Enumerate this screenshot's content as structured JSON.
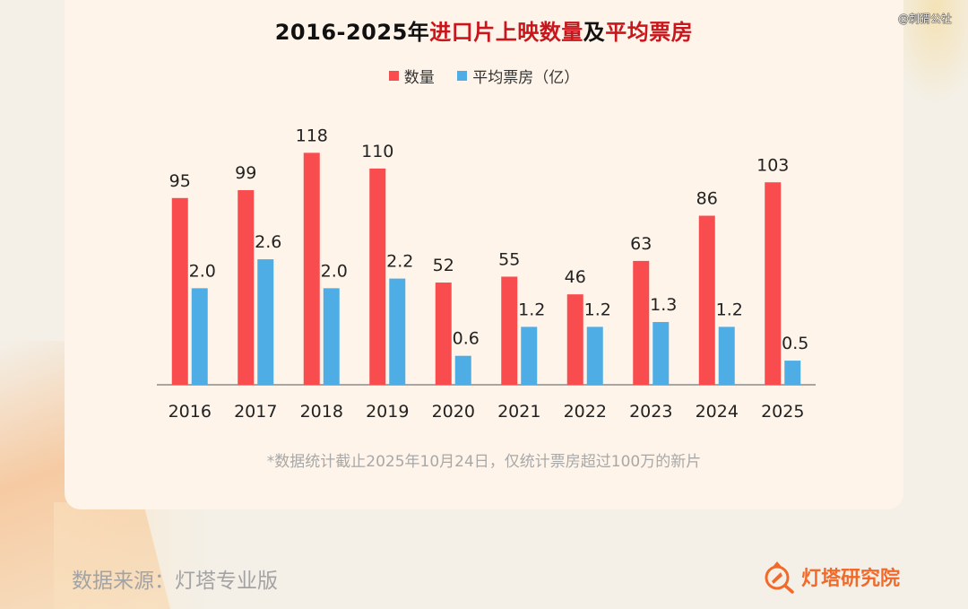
{
  "title": {
    "part1": "2016-2025年",
    "part2": "进口片上映数量",
    "part3": "及",
    "part4": "平均票房"
  },
  "watermark": "@刺猬公社",
  "colors": {
    "count": "#f94c4f",
    "avg_box_office": "#4fade6",
    "title_accent": "#c8161d",
    "brand": "#f26a2a"
  },
  "footnote": "*数据统计截止2025年10月24日，仅统计票房超过100万的新片",
  "source": "数据来源：灯塔专业版",
  "brand": "灯塔研究院",
  "chart_data": {
    "type": "bar",
    "title": "2016-2025年进口片上映数量及平均票房",
    "xlabel": "",
    "ylabel": "",
    "categories": [
      "2016",
      "2017",
      "2018",
      "2019",
      "2020",
      "2021",
      "2022",
      "2023",
      "2024",
      "2025"
    ],
    "series": [
      {
        "name": "数量",
        "color": "#f94c4f",
        "values": [
          95,
          99,
          118,
          110,
          52,
          55,
          46,
          63,
          86,
          103
        ],
        "labels": [
          "95",
          "99",
          "118",
          "110",
          "52",
          "55",
          "46",
          "63",
          "86",
          "103"
        ],
        "ylim": [
          0,
          120
        ]
      },
      {
        "name": "平均票房（亿）",
        "color": "#4fade6",
        "values": [
          2.0,
          2.6,
          2.0,
          2.2,
          0.6,
          1.2,
          1.2,
          1.3,
          1.2,
          0.5
        ],
        "labels": [
          "2.0",
          "2.6",
          "2.0",
          "2.2",
          "0.6",
          "1.2",
          "1.2",
          "1.3",
          "1.2",
          "0.5"
        ],
        "ylim": [
          0,
          5.5
        ]
      }
    ],
    "legend": "top-center",
    "grid": false,
    "y_axis_visible": false
  }
}
